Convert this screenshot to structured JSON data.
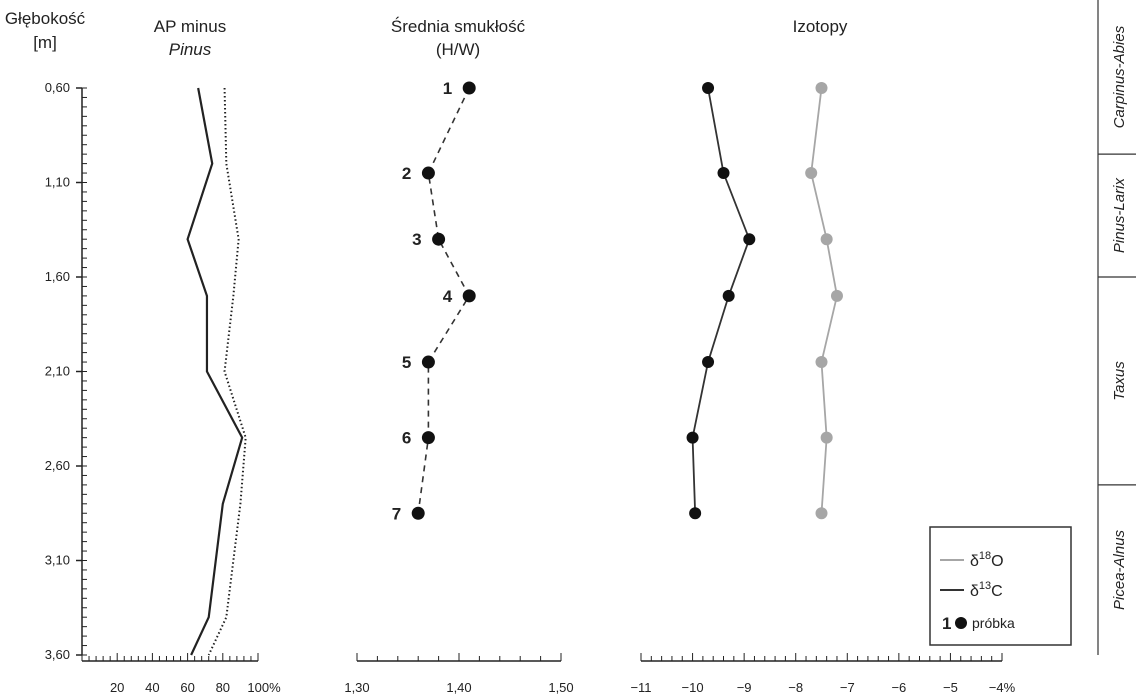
{
  "chart_data": [
    {
      "type": "line",
      "panel": "depth-axis",
      "title_line1": "Głębokość",
      "title_line2": "[m]",
      "yticks": [
        "0,60",
        "1,10",
        "1,60",
        "2,10",
        "2,60",
        "3,10",
        "3,60"
      ],
      "ylim": [
        0.6,
        3.6
      ],
      "y_inverted": true
    },
    {
      "type": "line",
      "panel": "ap-minus-pinus",
      "title_line1": "AP minus",
      "title_line2": "Pinus",
      "xticks": [
        "20",
        "40",
        "60",
        "80",
        "100%"
      ],
      "xlim": [
        0,
        100
      ],
      "series": [
        {
          "style": "solid",
          "depth": [
            0.6,
            1.0,
            1.4,
            1.7,
            2.1,
            2.45,
            2.8,
            3.4,
            3.6
          ],
          "values": [
            66,
            74,
            60,
            71,
            71,
            91,
            80,
            72,
            62
          ]
        },
        {
          "style": "dotted",
          "depth": [
            0.6,
            1.0,
            1.4,
            1.7,
            2.1,
            2.45,
            2.8,
            3.4,
            3.6
          ],
          "values": [
            81,
            82,
            89,
            86,
            81,
            93,
            90,
            82,
            72
          ]
        }
      ]
    },
    {
      "type": "scatter",
      "panel": "slenderness",
      "title_line1": "Średnia smukłość",
      "title_line2": "(H/W)",
      "xticks": [
        "1,30",
        "1,40",
        "1,50"
      ],
      "xlim": [
        1.3,
        1.5
      ],
      "points": [
        {
          "label": "1",
          "depth": 0.6,
          "value": 1.41
        },
        {
          "label": "2",
          "depth": 1.05,
          "value": 1.37
        },
        {
          "label": "3",
          "depth": 1.4,
          "value": 1.38
        },
        {
          "label": "4",
          "depth": 1.7,
          "value": 1.41
        },
        {
          "label": "5",
          "depth": 2.05,
          "value": 1.37
        },
        {
          "label": "6",
          "depth": 2.45,
          "value": 1.37
        },
        {
          "label": "7",
          "depth": 2.85,
          "value": 1.36
        }
      ]
    },
    {
      "type": "line",
      "panel": "isotopes",
      "title": "Izotopy",
      "xticks": [
        "−11",
        "−10",
        "−9",
        "−8",
        "−7",
        "−6",
        "−5",
        "−4%"
      ],
      "xlim": [
        -11,
        -4
      ],
      "depth": [
        0.6,
        1.05,
        1.4,
        1.7,
        2.05,
        2.45,
        2.85
      ],
      "series": [
        {
          "name": "δ18O",
          "color": "#a6a6a6",
          "values": [
            -7.5,
            -7.7,
            -7.4,
            -7.2,
            -7.5,
            -7.4,
            -7.5
          ]
        },
        {
          "name": "δ13C",
          "color": "#333333",
          "values": [
            -9.7,
            -9.4,
            -8.9,
            -9.3,
            -9.7,
            -10.0,
            -9.95
          ]
        }
      ],
      "legend": {
        "o18_base": "δ",
        "o18_sup": "18",
        "o18_tail": "O",
        "c13_base": "δ",
        "c13_sup": "13",
        "c13_tail": "C",
        "sample_number": "1",
        "sample_label": "próbka",
        "placement": "bottom-right"
      }
    },
    {
      "type": "table",
      "panel": "pollen-zones",
      "zones": [
        {
          "name": "Carpinus-Abies",
          "top_depth": 0.4,
          "bottom_depth": 0.95
        },
        {
          "name": "Pinus-Larix",
          "top_depth": 0.95,
          "bottom_depth": 1.6
        },
        {
          "name": "Taxus",
          "top_depth": 1.6,
          "bottom_depth": 2.7
        },
        {
          "name": "Picea-Alnus",
          "top_depth": 2.7,
          "bottom_depth": 3.6
        }
      ]
    }
  ]
}
